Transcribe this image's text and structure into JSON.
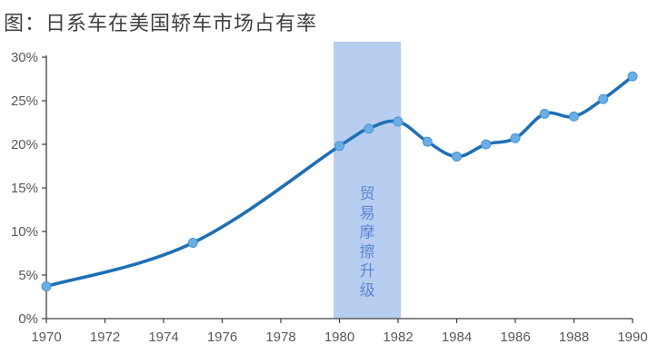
{
  "chart_data": {
    "type": "line",
    "title": "图：日系车在美国轿车市场占有率",
    "xlabel": "",
    "ylabel": "",
    "xlim": [
      1970,
      1990
    ],
    "ylim": [
      0,
      30
    ],
    "x_ticks": [
      1970,
      1972,
      1974,
      1976,
      1978,
      1980,
      1982,
      1984,
      1986,
      1988,
      1990
    ],
    "y_ticks": [
      0,
      5,
      10,
      15,
      20,
      25,
      30
    ],
    "y_tick_suffix": "%",
    "grid": false,
    "series": [
      {
        "color": "#1f6fb5",
        "marker_color": "#6aaee6",
        "points": [
          {
            "x": 1970,
            "y": 3.7
          },
          {
            "x": 1975,
            "y": 8.7
          },
          {
            "x": 1980,
            "y": 19.8
          },
          {
            "x": 1981,
            "y": 21.8
          },
          {
            "x": 1982,
            "y": 22.6
          },
          {
            "x": 1983,
            "y": 20.3
          },
          {
            "x": 1984,
            "y": 18.6
          },
          {
            "x": 1985,
            "y": 20.0
          },
          {
            "x": 1986,
            "y": 20.7
          },
          {
            "x": 1987,
            "y": 23.5
          },
          {
            "x": 1988,
            "y": 23.2
          },
          {
            "x": 1989,
            "y": 25.2
          },
          {
            "x": 1990,
            "y": 27.8
          }
        ]
      }
    ],
    "annotations": [
      {
        "type": "band",
        "x_start": 1979.8,
        "x_end": 1982.1,
        "label": "贸易摩擦升级",
        "color": "#b8cef0"
      }
    ]
  }
}
